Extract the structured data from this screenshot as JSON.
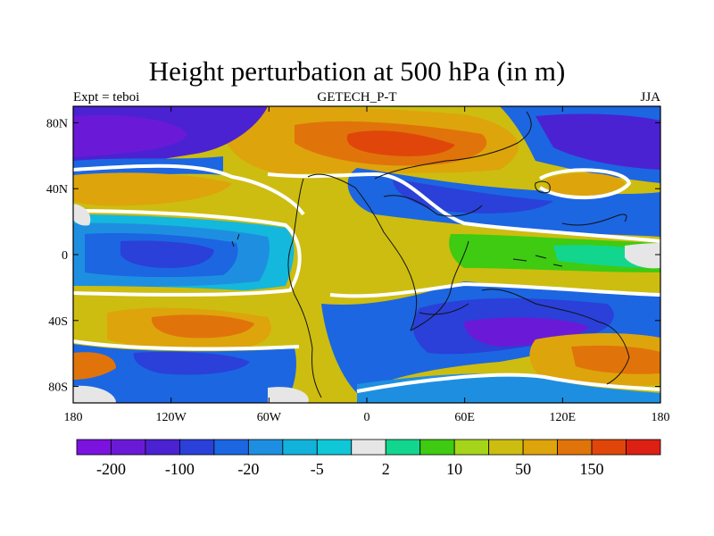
{
  "title": "Height perturbation at 500 hPa (in m)",
  "subtitle_left": "Expt = teboi",
  "subtitle_center": "GETECH_P-T",
  "subtitle_right": "JJA",
  "x_ticks": [
    "180",
    "120W",
    "60W",
    "0",
    "60E",
    "120E",
    "180"
  ],
  "y_ticks": [
    "80N",
    "40N",
    "0",
    "40S",
    "80S"
  ],
  "colorbar": {
    "colors": [
      "#7b12de",
      "#6a1ad6",
      "#4b22d2",
      "#2a40d8",
      "#1c66e2",
      "#1e8fe0",
      "#12b2da",
      "#10c7d8",
      "#e6e6e6",
      "#12d68e",
      "#3ecb12",
      "#a6d41a",
      "#cdbd10",
      "#dea40c",
      "#e0740a",
      "#e0460a",
      "#dc2014"
    ],
    "labels": [
      "-200",
      "-100",
      "-20",
      "-5",
      "2",
      "10",
      "50",
      "150"
    ]
  },
  "legend_colors": {
    "deep_purple": "#5a14d6",
    "blue": "#2a46dc",
    "mid_blue": "#1c7be4",
    "light_blue": "#14b8dc",
    "white_band": "#ffffff",
    "yellow": "#cdbd10",
    "orange": "#dea40c",
    "red_orange": "#e0600a",
    "green": "#3ecb12"
  }
}
